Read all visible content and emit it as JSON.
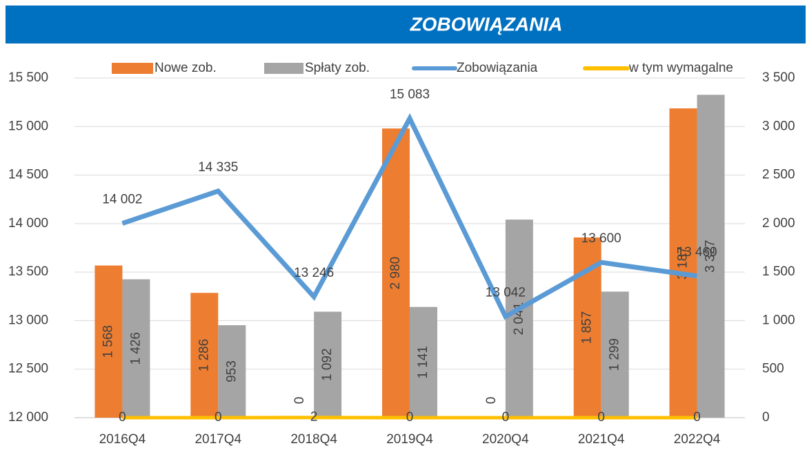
{
  "chart_data": {
    "type": "bar",
    "title": "ZOBOWIĄZANIA",
    "categories": [
      "2016Q4",
      "2017Q4",
      "2018Q4",
      "2019Q4",
      "2020Q4",
      "2021Q4",
      "2022Q4"
    ],
    "series": [
      {
        "name": "Nowe zob.",
        "type": "bar",
        "axis": "y2",
        "color": "#ed7d31",
        "values": [
          1568,
          1286,
          0,
          2980,
          0,
          1857,
          3187
        ],
        "value_labels": [
          "1 568",
          "1 286",
          "0",
          "2 980",
          "0",
          "1 857",
          "3 187"
        ]
      },
      {
        "name": "Spłaty zob.",
        "type": "bar",
        "axis": "y2",
        "color": "#a5a5a5",
        "values": [
          1426,
          953,
          1092,
          1141,
          2041,
          1299,
          3327
        ],
        "value_labels": [
          "1 426",
          "953",
          "1 092",
          "1 141",
          "2 041",
          "1 299",
          "3 327"
        ]
      },
      {
        "name": "Zobowiązania",
        "type": "line",
        "axis": "y",
        "color": "#5b9bd5",
        "values": [
          14002,
          14335,
          13246,
          15083,
          13042,
          13600,
          13460
        ],
        "value_labels": [
          "14 002",
          "14 335",
          "13 246",
          "15 083",
          "13 042",
          "13 600",
          "13 460"
        ]
      },
      {
        "name": "w tym wymagalne",
        "type": "line",
        "axis": "y2",
        "color": "#ffc000",
        "values": [
          0,
          0,
          2,
          0,
          0,
          0,
          0
        ]
      }
    ],
    "ylim": [
      12000,
      15500
    ],
    "yticks": [
      {
        "value": 12000,
        "label": "12 000"
      },
      {
        "value": 12500,
        "label": "12 500"
      },
      {
        "value": 13000,
        "label": "13 000"
      },
      {
        "value": 13500,
        "label": "13 500"
      },
      {
        "value": 14000,
        "label": "14 000"
      },
      {
        "value": 14500,
        "label": "14 500"
      },
      {
        "value": 15000,
        "label": "15 000"
      },
      {
        "value": 15500,
        "label": "15 500"
      }
    ],
    "y2lim": [
      0,
      3500
    ],
    "y2ticks": [
      0,
      500,
      {
        "value": 1000,
        "label": "1 000"
      },
      {
        "value": 1500,
        "label": "1 500"
      },
      {
        "value": 2000,
        "label": "2 000"
      },
      {
        "value": 2500,
        "label": "2 500"
      },
      {
        "value": 3000,
        "label": "3 000"
      },
      {
        "value": 3500,
        "label": "3 500"
      }
    ],
    "grid": true,
    "legend": "top"
  }
}
